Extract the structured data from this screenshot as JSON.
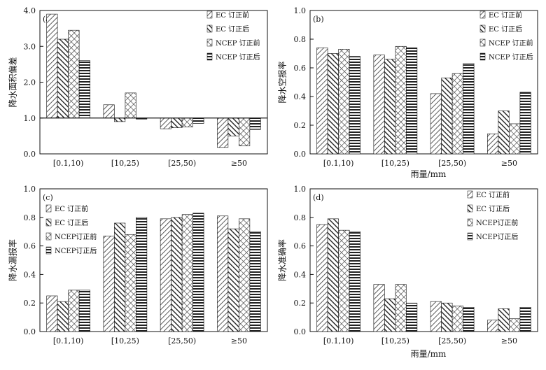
{
  "chart_data": [
    {
      "type": "bar",
      "panel": "(a)",
      "ylabel": "降水面积偏差",
      "xlabel": "",
      "ylim": [
        0,
        4.0
      ],
      "yticks": [
        "0.0",
        "1.0",
        "2.0",
        "3.0",
        "4.0"
      ],
      "reference_line": 1.0,
      "categories": [
        "[0.1,10)",
        "[10,25)",
        "[25,50)",
        "≥50"
      ],
      "series": [
        {
          "name": "EC 订正前",
          "values": [
            3.9,
            1.37,
            0.7,
            0.18
          ]
        },
        {
          "name": "EC 订正后",
          "values": [
            3.2,
            0.9,
            0.73,
            0.5
          ]
        },
        {
          "name": "NCEP 订正前",
          "values": [
            3.45,
            1.7,
            0.75,
            0.22
          ]
        },
        {
          "name": "NCEP 订正后",
          "values": [
            2.6,
            0.97,
            0.85,
            0.68
          ]
        }
      ]
    },
    {
      "type": "bar",
      "panel": "(b)",
      "ylabel": "降水空报率",
      "xlabel": "雨量/mm",
      "ylim": [
        0,
        1.0
      ],
      "yticks": [
        "0.0",
        "0.2",
        "0.4",
        "0.6",
        "0.8",
        "1.0"
      ],
      "categories": [
        "[0.1,10)",
        "[10,25)",
        "[25,50)",
        "≥50"
      ],
      "series": [
        {
          "name": "EC 订正前",
          "values": [
            0.74,
            0.69,
            0.42,
            0.14
          ]
        },
        {
          "name": "EC 订正后",
          "values": [
            0.7,
            0.66,
            0.53,
            0.3
          ]
        },
        {
          "name": "NCEP 订正前",
          "values": [
            0.73,
            0.75,
            0.56,
            0.21
          ]
        },
        {
          "name": "NCEP 订正后",
          "values": [
            0.68,
            0.74,
            0.63,
            0.43
          ]
        }
      ]
    },
    {
      "type": "bar",
      "panel": "(c)",
      "ylabel": "降水漏报率",
      "xlabel": "",
      "ylim": [
        0,
        1.0
      ],
      "yticks": [
        "0.0",
        "0.2",
        "0.4",
        "0.6",
        "0.8",
        "1.0"
      ],
      "categories": [
        "[0.1,10)",
        "[10,25)",
        "[25,50)",
        "≥50"
      ],
      "series": [
        {
          "name": "EC 订正前",
          "values": [
            0.25,
            0.67,
            0.79,
            0.81
          ]
        },
        {
          "name": "EC 订正后",
          "values": [
            0.21,
            0.76,
            0.8,
            0.72
          ]
        },
        {
          "name": "NCEP订正前",
          "values": [
            0.29,
            0.68,
            0.82,
            0.79
          ]
        },
        {
          "name": "NCEP订正后",
          "values": [
            0.29,
            0.8,
            0.83,
            0.7
          ]
        }
      ]
    },
    {
      "type": "bar",
      "panel": "(d)",
      "ylabel": "降水准确率",
      "xlabel": "雨量/mm",
      "ylim": [
        0,
        1.0
      ],
      "yticks": [
        "0.0",
        "0.2",
        "0.4",
        "0.6",
        "0.8",
        "1.0"
      ],
      "categories": [
        "[0.1,10)",
        "[10,25)",
        "[25,50)",
        "≥50"
      ],
      "series": [
        {
          "name": "EC 订正前",
          "values": [
            0.75,
            0.33,
            0.21,
            0.08
          ]
        },
        {
          "name": "EC 订正后",
          "values": [
            0.79,
            0.23,
            0.2,
            0.16
          ]
        },
        {
          "name": "NCEP订正前",
          "values": [
            0.71,
            0.33,
            0.18,
            0.09
          ]
        },
        {
          "name": "NCEP订正后",
          "values": [
            0.7,
            0.2,
            0.17,
            0.17
          ]
        }
      ]
    }
  ]
}
